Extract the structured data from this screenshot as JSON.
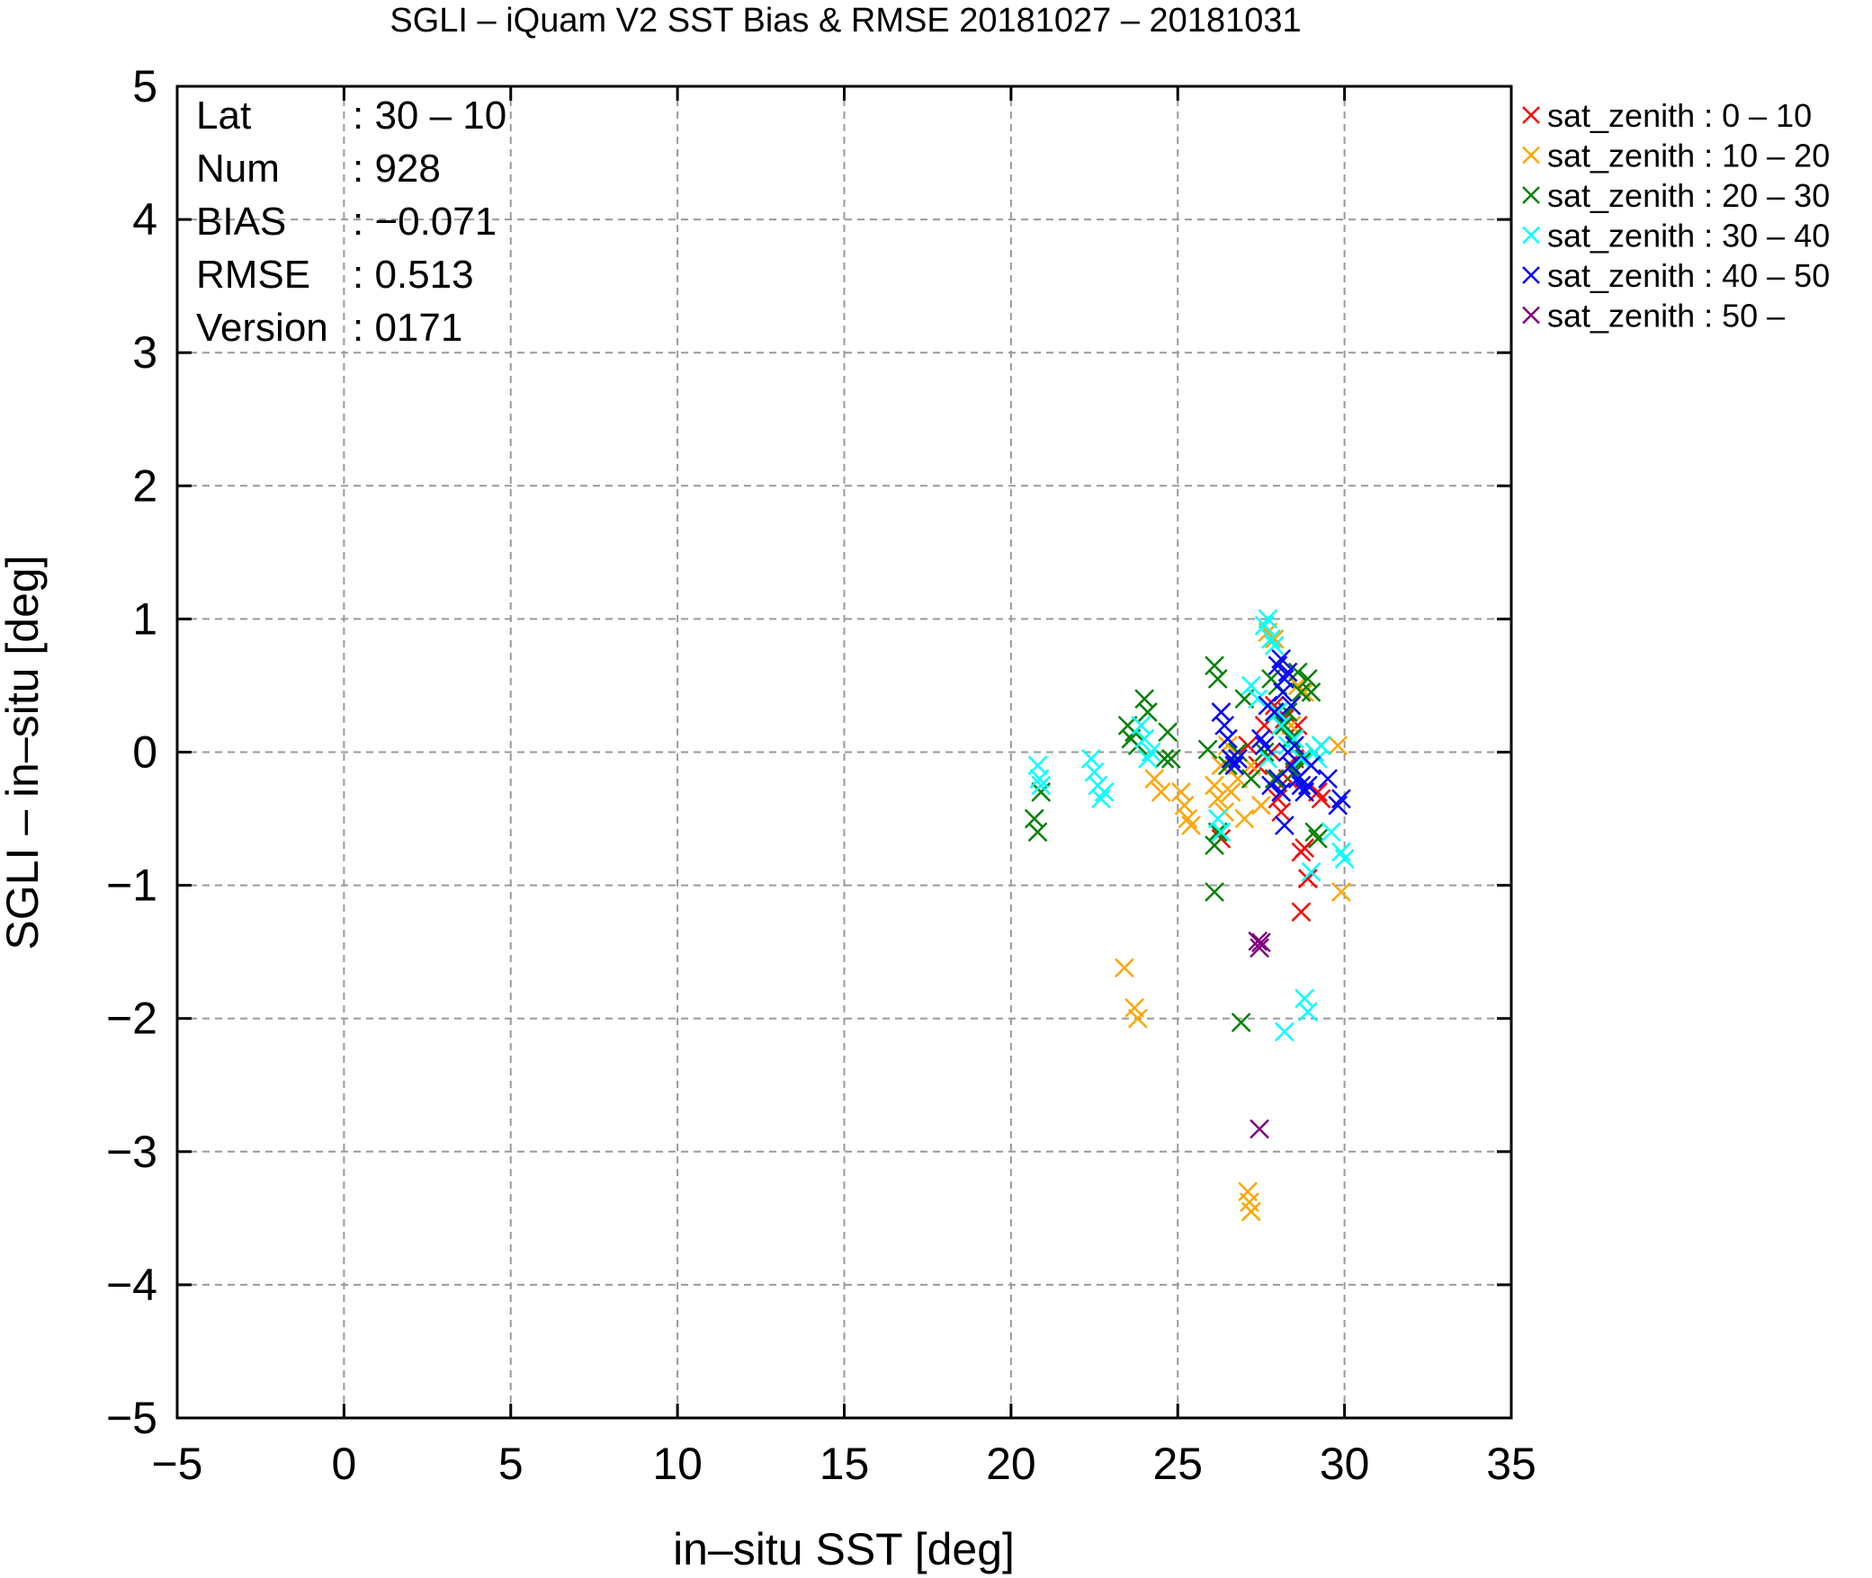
{
  "chart_data": {
    "type": "scatter",
    "title": "SGLI – iQuam V2 SST Bias & RMSE 20181027 – 20181031",
    "xlabel": "in–situ SST [deg]",
    "ylabel": "SGLI – in–situ [deg]",
    "xlim": [
      -5,
      35
    ],
    "ylim": [
      -5,
      5
    ],
    "x_ticks": [
      -5,
      0,
      5,
      10,
      15,
      20,
      25,
      30,
      35
    ],
    "x_tick_labels": [
      "−5",
      "0",
      "5",
      "10",
      "15",
      "20",
      "25",
      "30",
      "35"
    ],
    "y_ticks": [
      -5,
      -4,
      -3,
      -2,
      -1,
      0,
      1,
      2,
      3,
      4,
      5
    ],
    "y_tick_labels": [
      "−5",
      "−4",
      "−3",
      "−2",
      "−1",
      "0",
      "1",
      "2",
      "3",
      "4",
      "5"
    ],
    "grid": true,
    "legend_position": "outside-right-top",
    "stats": [
      {
        "key": "Lat",
        "value": ": 30 – 10"
      },
      {
        "key": "Num",
        "value": ": 928"
      },
      {
        "key": "BIAS",
        "value": ": −0.071"
      },
      {
        "key": "RMSE",
        "value": ": 0.513"
      },
      {
        "key": "Version",
        "value": ": 0171"
      }
    ],
    "series": [
      {
        "name": "sat_zenith :  0 – 10",
        "color": "#ff0000",
        "points": [
          [
            27.1,
            0.05
          ],
          [
            27.4,
            -0.1
          ],
          [
            27.8,
            0.0
          ],
          [
            28.0,
            -0.35
          ],
          [
            28.2,
            0.25
          ],
          [
            28.4,
            0.1
          ],
          [
            28.5,
            -0.05
          ],
          [
            28.6,
            0.2
          ],
          [
            28.7,
            -0.75
          ],
          [
            28.8,
            -0.72
          ],
          [
            28.9,
            -0.95
          ],
          [
            29.0,
            -0.1
          ],
          [
            29.2,
            -0.3
          ],
          [
            29.3,
            -0.35
          ],
          [
            28.7,
            -1.2
          ],
          [
            27.9,
            0.35
          ],
          [
            28.3,
            -0.2
          ],
          [
            26.3,
            -0.65
          ],
          [
            27.6,
            0.2
          ],
          [
            28.1,
            -0.45
          ],
          [
            29.1,
            0.0
          ]
        ]
      },
      {
        "name": "sat_zenith : 10 – 20",
        "color": "#ffa500",
        "points": [
          [
            23.4,
            -1.62
          ],
          [
            23.7,
            -1.92
          ],
          [
            23.8,
            -2.0
          ],
          [
            24.3,
            -0.2
          ],
          [
            24.5,
            -0.3
          ],
          [
            25.1,
            -0.3
          ],
          [
            25.2,
            -0.4
          ],
          [
            25.3,
            -0.5
          ],
          [
            25.4,
            -0.55
          ],
          [
            26.1,
            -0.25
          ],
          [
            26.2,
            -0.35
          ],
          [
            26.3,
            -0.1
          ],
          [
            26.4,
            -0.45
          ],
          [
            26.5,
            0.05
          ],
          [
            26.6,
            -0.3
          ],
          [
            26.8,
            -0.2
          ],
          [
            27.0,
            -0.5
          ],
          [
            27.2,
            -0.1
          ],
          [
            27.5,
            -0.4
          ],
          [
            27.1,
            -3.3
          ],
          [
            27.15,
            -3.38
          ],
          [
            27.2,
            -3.45
          ],
          [
            27.7,
            0.9
          ],
          [
            27.9,
            0.85
          ],
          [
            28.4,
            0.2
          ],
          [
            28.6,
            0.5
          ],
          [
            28.8,
            0.45
          ],
          [
            29.8,
            0.05
          ],
          [
            29.9,
            -1.05
          ]
        ]
      },
      {
        "name": "sat_zenith : 20 – 30",
        "color": "#008000",
        "points": [
          [
            20.7,
            -0.5
          ],
          [
            20.8,
            -0.6
          ],
          [
            20.9,
            -0.3
          ],
          [
            23.5,
            0.2
          ],
          [
            23.6,
            0.1
          ],
          [
            23.7,
            0.15
          ],
          [
            23.8,
            0.05
          ],
          [
            24.0,
            0.4
          ],
          [
            24.1,
            0.3
          ],
          [
            24.6,
            -0.05
          ],
          [
            24.7,
            0.15
          ],
          [
            24.8,
            -0.05
          ],
          [
            25.9,
            0.02
          ],
          [
            26.1,
            0.65
          ],
          [
            26.2,
            0.55
          ],
          [
            26.1,
            -0.7
          ],
          [
            26.2,
            -0.6
          ],
          [
            26.1,
            -1.05
          ],
          [
            26.5,
            -0.1
          ],
          [
            26.8,
            0.0
          ],
          [
            26.9,
            -2.03
          ],
          [
            27.0,
            0.4
          ],
          [
            27.2,
            -0.2
          ],
          [
            27.6,
            0.0
          ],
          [
            27.8,
            0.55
          ],
          [
            27.9,
            -0.2
          ],
          [
            28.0,
            0.5
          ],
          [
            28.1,
            -0.3
          ],
          [
            28.3,
            0.3
          ],
          [
            28.4,
            0.1
          ],
          [
            28.5,
            -0.15
          ],
          [
            28.6,
            0.6
          ],
          [
            28.7,
            0.45
          ],
          [
            28.8,
            -0.05
          ],
          [
            28.9,
            0.55
          ],
          [
            29.0,
            0.45
          ],
          [
            29.1,
            -0.6
          ],
          [
            29.2,
            -0.65
          ],
          [
            29.3,
            0.05
          ],
          [
            27.9,
            0.3
          ],
          [
            28.2,
            0.2
          ]
        ]
      },
      {
        "name": "sat_zenith : 30 – 40",
        "color": "#00ffff",
        "points": [
          [
            20.8,
            -0.1
          ],
          [
            20.85,
            -0.2
          ],
          [
            20.9,
            -0.25
          ],
          [
            22.4,
            -0.05
          ],
          [
            22.5,
            -0.15
          ],
          [
            22.6,
            -0.25
          ],
          [
            22.7,
            -0.35
          ],
          [
            22.8,
            -0.3
          ],
          [
            23.9,
            0.2
          ],
          [
            24.0,
            0.1
          ],
          [
            24.1,
            -0.05
          ],
          [
            24.2,
            0.0
          ],
          [
            26.2,
            -0.5
          ],
          [
            26.3,
            -0.6
          ],
          [
            27.2,
            0.5
          ],
          [
            27.4,
            0.4
          ],
          [
            27.6,
            0.95
          ],
          [
            27.7,
            1.0
          ],
          [
            27.8,
            0.85
          ],
          [
            27.9,
            0.8
          ],
          [
            27.7,
            -0.05
          ],
          [
            28.0,
            0.3
          ],
          [
            28.2,
            -2.1
          ],
          [
            28.3,
            0.05
          ],
          [
            28.5,
            0.1
          ],
          [
            28.7,
            -0.05
          ],
          [
            28.8,
            -1.85
          ],
          [
            28.9,
            -1.95
          ],
          [
            29.0,
            -0.9
          ],
          [
            29.1,
            0.0
          ],
          [
            29.2,
            -0.05
          ],
          [
            29.3,
            0.05
          ],
          [
            29.6,
            -0.6
          ],
          [
            29.9,
            -0.75
          ],
          [
            30.0,
            -0.8
          ],
          [
            28.1,
            0.2
          ],
          [
            28.6,
            -0.2
          ]
        ]
      },
      {
        "name": "sat_zenith : 40 – 50",
        "color": "#0000ff",
        "points": [
          [
            26.3,
            0.3
          ],
          [
            26.4,
            0.2
          ],
          [
            26.5,
            0.1
          ],
          [
            26.6,
            -0.05
          ],
          [
            26.7,
            -0.1
          ],
          [
            26.8,
            -0.05
          ],
          [
            27.5,
            0.1
          ],
          [
            27.6,
            0.05
          ],
          [
            27.7,
            0.35
          ],
          [
            27.9,
            0.3
          ],
          [
            28.0,
            0.65
          ],
          [
            28.1,
            0.7
          ],
          [
            28.2,
            0.55
          ],
          [
            28.3,
            0.6
          ],
          [
            28.4,
            0.35
          ],
          [
            28.0,
            -0.2
          ],
          [
            28.1,
            -0.3
          ],
          [
            28.2,
            -0.55
          ],
          [
            28.3,
            0.0
          ],
          [
            28.4,
            -0.1
          ],
          [
            28.5,
            0.05
          ],
          [
            28.6,
            -0.2
          ],
          [
            28.7,
            -0.25
          ],
          [
            28.8,
            -0.3
          ],
          [
            28.9,
            -0.25
          ],
          [
            29.0,
            -0.1
          ],
          [
            29.5,
            -0.2
          ],
          [
            29.8,
            -0.4
          ],
          [
            29.9,
            -0.35
          ],
          [
            27.8,
            -0.25
          ],
          [
            28.15,
            0.45
          ]
        ]
      },
      {
        "name": "sat_zenith : 50 –",
        "color": "#800080",
        "points": [
          [
            27.4,
            -1.42
          ],
          [
            27.45,
            -1.47
          ],
          [
            27.5,
            -1.43
          ],
          [
            27.45,
            -2.83
          ]
        ]
      }
    ]
  }
}
